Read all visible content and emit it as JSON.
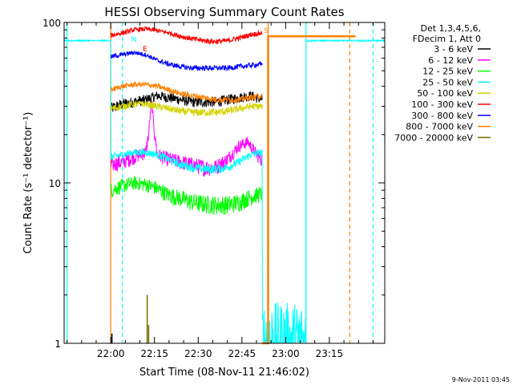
{
  "chart_data": {
    "type": "line",
    "title": "HESSI Observing Summary Count Rates",
    "xlabel": "Start Time (08-Nov-11 21:46:02)",
    "ylabel": "Count Rate (s⁻¹ detector⁻¹)",
    "y_scale": "log",
    "ylim": [
      1,
      100
    ],
    "x_range_minutes": [
      -16,
      94
    ],
    "x_ticks": [
      {
        "minute": 0,
        "label": "22:00"
      },
      {
        "minute": 15,
        "label": "22:15"
      },
      {
        "minute": 30,
        "label": "22:30"
      },
      {
        "minute": 45,
        "label": "22:45"
      },
      {
        "minute": 60,
        "label": "23:00"
      },
      {
        "minute": 75,
        "label": "23:15"
      }
    ],
    "y_ticks": [
      {
        "value": 1,
        "label": "1"
      },
      {
        "value": 10,
        "label": "10"
      },
      {
        "value": 100,
        "label": "100"
      }
    ],
    "legend": {
      "placement": "right",
      "header": [
        "Det 1,3,4,5,6,",
        "FDecim 1, Att 0"
      ],
      "entries": [
        {
          "label": "3 - 6 keV",
          "color": "#000000"
        },
        {
          "label": "6 - 12 keV",
          "color": "#ff00ff"
        },
        {
          "label": "12 - 25 keV",
          "color": "#00ff00"
        },
        {
          "label": "25 - 50 keV",
          "color": "#00ffff"
        },
        {
          "label": "50 - 100 keV",
          "color": "#d4d400"
        },
        {
          "label": "100 - 300 keV",
          "color": "#ff0000"
        },
        {
          "label": "300 - 800 keV",
          "color": "#0000ff"
        },
        {
          "label": "800 - 7000 keV",
          "color": "#ff8000"
        },
        {
          "label": "7000 - 20000 keV",
          "color": "#7a6a00"
        }
      ]
    },
    "series": [
      {
        "name": "3 - 6 keV",
        "color": "#000000",
        "noise": 2.5,
        "x": [
          0,
          4,
          8,
          12,
          16,
          20,
          24,
          28,
          32,
          36,
          40,
          44,
          48,
          52
        ],
        "y": [
          29,
          31,
          32,
          33,
          35,
          34,
          33,
          32,
          32,
          32,
          33,
          34,
          35,
          33
        ]
      },
      {
        "name": "6 - 12 keV",
        "color": "#ff00ff",
        "noise": 1.5,
        "x": [
          0,
          4,
          8,
          12,
          13,
          14,
          15,
          16,
          20,
          24,
          28,
          32,
          36,
          40,
          44,
          47,
          50,
          52
        ],
        "y": [
          13,
          13.5,
          14.5,
          15.5,
          20,
          32,
          20,
          15,
          14,
          13.5,
          13,
          12.5,
          12.5,
          14,
          17,
          18,
          15,
          14
        ]
      },
      {
        "name": "12 - 25 keV",
        "color": "#00ff00",
        "noise": 1.0,
        "x": [
          0,
          4,
          8,
          12,
          16,
          20,
          24,
          28,
          32,
          36,
          40,
          44,
          48,
          52
        ],
        "y": [
          9,
          9.6,
          10,
          9.8,
          9.2,
          8.4,
          8,
          7.6,
          7.4,
          7.3,
          7.3,
          7.6,
          8.2,
          8.6
        ]
      },
      {
        "name": "25 - 50 keV",
        "color": "#00ffff",
        "noise": 0.8,
        "x": [
          -16,
          0,
          0,
          4,
          8,
          12,
          16,
          20,
          24,
          28,
          32,
          36,
          40,
          44,
          48,
          52,
          52,
          67,
          67,
          94
        ],
        "y": [
          77,
          77,
          14.5,
          15,
          15.5,
          15.5,
          15,
          14,
          13,
          12.5,
          12.2,
          12.2,
          12.5,
          13.5,
          15,
          15.5,
          1,
          1,
          77,
          77
        ]
      },
      {
        "name": "50 - 100 keV",
        "color": "#d4d400",
        "noise": 1.5,
        "x": [
          0,
          4,
          8,
          12,
          16,
          20,
          24,
          28,
          32,
          36,
          40,
          44,
          48,
          52
        ],
        "y": [
          29,
          30,
          31,
          31,
          30,
          29,
          28,
          27.5,
          27.5,
          27.5,
          28,
          29,
          30,
          30
        ]
      },
      {
        "name": "100 - 300 keV",
        "color": "#ff0000",
        "noise": 3,
        "x": [
          0,
          4,
          8,
          12,
          16,
          20,
          24,
          28,
          32,
          36,
          40,
          44,
          48,
          52
        ],
        "y": [
          83,
          86,
          90,
          91,
          89,
          86,
          82,
          79,
          77,
          76,
          77,
          80,
          84,
          86
        ]
      },
      {
        "name": "300 - 800 keV",
        "color": "#0000ff",
        "noise": 2,
        "x": [
          0,
          4,
          8,
          12,
          16,
          20,
          24,
          28,
          32,
          36,
          40,
          44,
          48,
          52
        ],
        "y": [
          61,
          63,
          65,
          63,
          58,
          55,
          53,
          52,
          52,
          52,
          52,
          53,
          54,
          55
        ]
      },
      {
        "name": "800 - 7000 keV",
        "color": "#ff8000",
        "noise": 1.5,
        "x": [
          0,
          4,
          8,
          12,
          16,
          20,
          24,
          28,
          32,
          36,
          40,
          44,
          48,
          52
        ],
        "y": [
          38,
          40,
          41,
          41,
          40,
          38,
          36,
          35,
          34,
          33,
          33,
          33,
          34,
          35
        ]
      },
      {
        "name": "800 - 7000 keV (after)",
        "color": "#ff8000",
        "noise": 0,
        "x": [
          52,
          54,
          54,
          84
        ],
        "y": [
          1,
          1,
          82,
          82
        ]
      }
    ],
    "vertical_lines": [
      {
        "minute": 0,
        "color": "#ff8000",
        "style": "solid"
      },
      {
        "minute": 4,
        "color": "#00ffff",
        "style": "dashed"
      },
      {
        "minute": 54,
        "color": "#ff8000",
        "style": "solid"
      },
      {
        "minute": 67,
        "color": "#00ffff",
        "style": "solid"
      },
      {
        "minute": 82,
        "color": "#ff8000",
        "style": "dashed"
      },
      {
        "minute": 90,
        "color": "#00ffff",
        "style": "dashed"
      },
      {
        "minute": -15,
        "color": "#00ffff",
        "style": "solid"
      }
    ],
    "spikes": [
      {
        "minute": 12.5,
        "value": 2.0,
        "color": "#7a6a00"
      },
      {
        "minute": 13.0,
        "value": 1.3,
        "color": "#7a6a00"
      },
      {
        "minute": 0.4,
        "value": 1.15,
        "color": "#000000"
      }
    ],
    "annotations": [
      {
        "text": "N",
        "minute": 7,
        "value": 76,
        "color": "#00ffff"
      },
      {
        "text": "S",
        "minute": 52.5,
        "value": 86,
        "color": "#ff8000"
      },
      {
        "text": "E",
        "minute": 11,
        "value": 66,
        "color": "#ff0000"
      }
    ]
  },
  "footer_timestamp": "9-Nov-2011 03:45"
}
